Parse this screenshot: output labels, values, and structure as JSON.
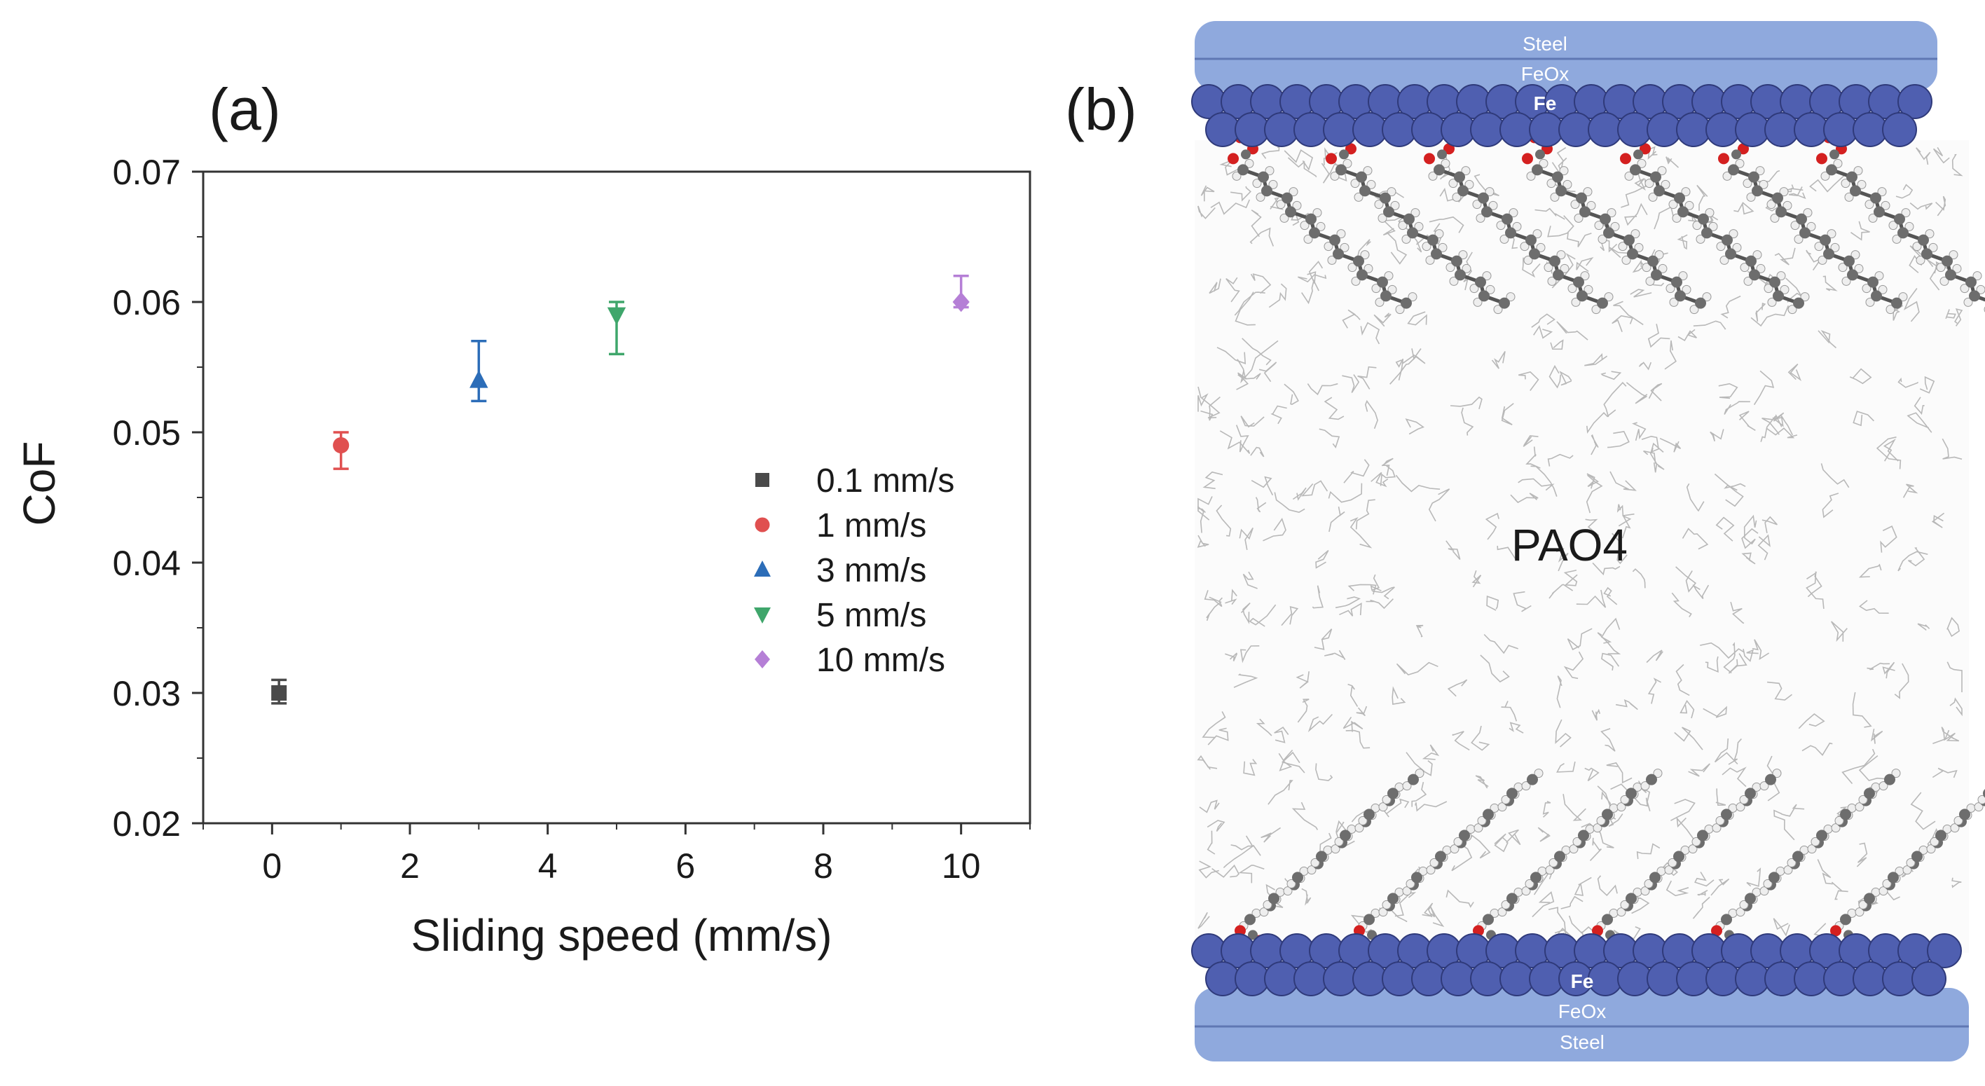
{
  "chart_data": {
    "type": "scatter",
    "panel_label": "(a)",
    "xlabel": "Sliding speed (mm/s)",
    "ylabel": "CoF",
    "xlim": [
      -1,
      11
    ],
    "ylim": [
      0.02,
      0.07
    ],
    "xticks": [
      "0",
      "2",
      "4",
      "6",
      "8",
      "10"
    ],
    "xtick_values": [
      0,
      2,
      4,
      6,
      8,
      10
    ],
    "yticks": [
      "0.02",
      "0.03",
      "0.04",
      "0.05",
      "0.06",
      "0.07"
    ],
    "ytick_values": [
      0.02,
      0.03,
      0.04,
      0.05,
      0.06,
      0.07
    ],
    "grid": false,
    "legend_position": "right",
    "series": [
      {
        "name": "0.1 mm/s",
        "x": 0.1,
        "y": 0.03,
        "err_low": 0.0292,
        "err_high": 0.031,
        "color": "#4a4a4a",
        "marker": "square"
      },
      {
        "name": "1 mm/s",
        "x": 1,
        "y": 0.049,
        "err_low": 0.0472,
        "err_high": 0.05,
        "color": "#e05050",
        "marker": "circle"
      },
      {
        "name": "3 mm/s",
        "x": 3,
        "y": 0.054,
        "err_low": 0.0524,
        "err_high": 0.057,
        "color": "#2c6db8",
        "marker": "triangle-up"
      },
      {
        "name": "5 mm/s",
        "x": 5,
        "y": 0.059,
        "err_low": 0.056,
        "err_high": 0.06,
        "color": "#3fa66b",
        "marker": "triangle-down"
      },
      {
        "name": "10 mm/s",
        "x": 10,
        "y": 0.06,
        "err_low": 0.0596,
        "err_high": 0.062,
        "color": "#b57fd6",
        "marker": "diamond"
      }
    ]
  },
  "figure_b": {
    "panel_label": "(b)",
    "top_labels": [
      "Steel",
      "FeOx",
      "Fe"
    ],
    "bottom_labels": [
      "Fe",
      "FeOx",
      "Steel"
    ],
    "center_label": "PAO4",
    "colors": {
      "slab": "#8fa9dd",
      "atom": "#4f5fb0",
      "carbon": "#6d6d6d",
      "oxygen": "#d42020",
      "hydrogen": "#eeeeee",
      "matrix": "#b8b8b8"
    }
  }
}
